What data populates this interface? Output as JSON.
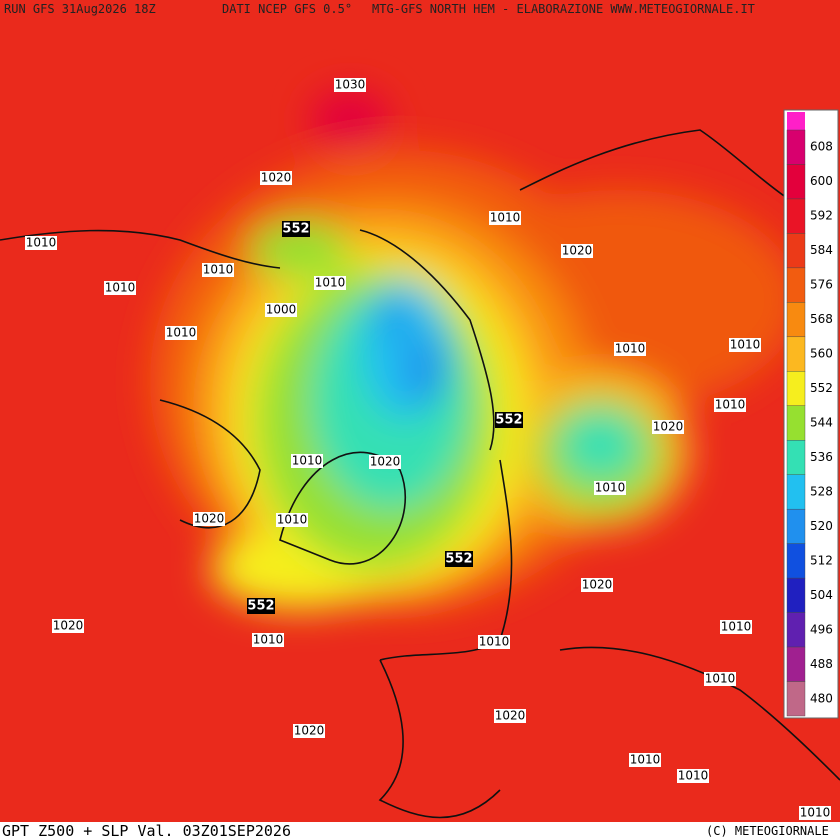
{
  "header": {
    "run": "RUN GFS 31Aug2026 18Z",
    "source": "DATI NCEP GFS 0.5°",
    "product": "MTG-GFS NORTH HEM - ELABORAZIONE WWW.METEOGIORNALE.IT"
  },
  "footer": {
    "title": "GPT Z500 + SLP Val. 03Z01SEP2026",
    "copyright": "(C) METEOGIORNALE"
  },
  "legend": {
    "levels": [
      608,
      600,
      592,
      584,
      576,
      568,
      560,
      552,
      544,
      536,
      528,
      520,
      512,
      504,
      496,
      488,
      480
    ],
    "colors": [
      "#d8006e",
      "#e3003c",
      "#ea1426",
      "#ec3a18",
      "#f25c10",
      "#f88a10",
      "#fcb820",
      "#f6ee1e",
      "#96e030",
      "#34e0b4",
      "#22c0f0",
      "#2090ee",
      "#1050e0",
      "#2020c0",
      "#6020b0",
      "#a02090",
      "#c06888"
    ]
  },
  "map": {
    "pressure_labels": [
      1030,
      1020,
      1010,
      1010,
      1010,
      1010,
      1020,
      1010,
      1000,
      1010,
      1010,
      1010,
      1010,
      1020,
      1020,
      1010,
      1010,
      1020,
      1010,
      1020,
      1020,
      1010,
      1010,
      1010,
      1010,
      1020,
      1020,
      1010,
      1010,
      1010
    ],
    "height_labels": [
      552,
      552,
      552,
      552
    ]
  }
}
